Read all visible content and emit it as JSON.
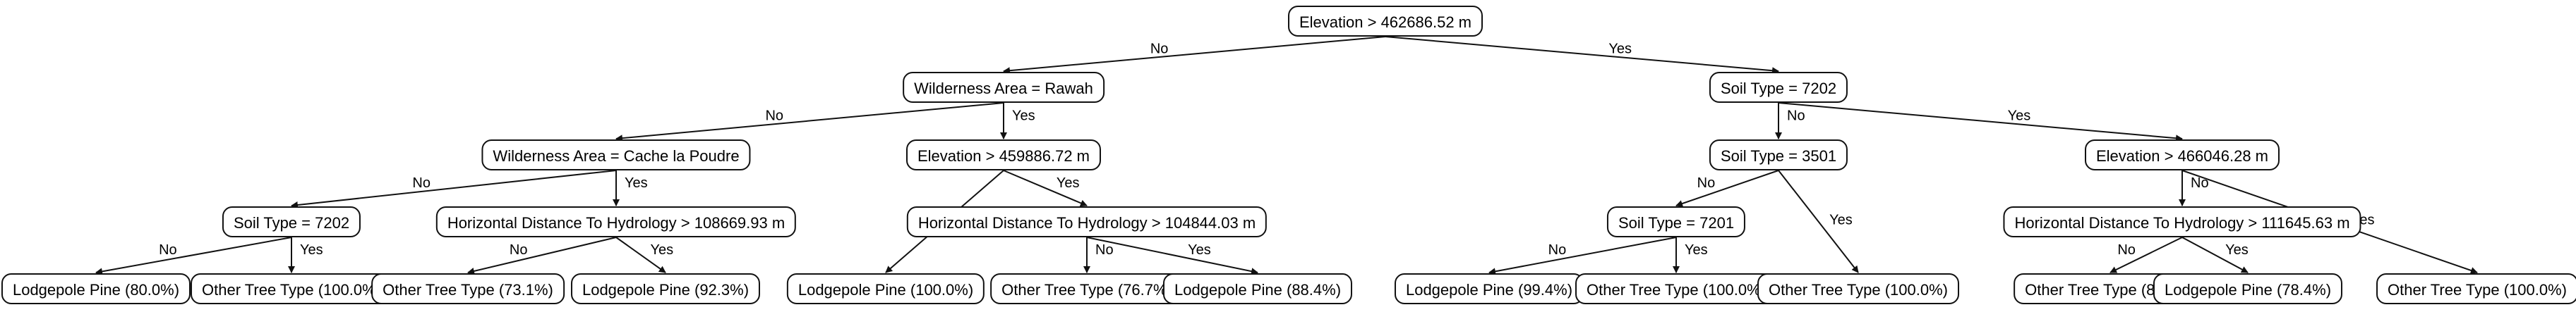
{
  "nodes": [
    {
      "id": "n0",
      "text": "Elevation > 462686.52 m"
    },
    {
      "id": "n1",
      "text": "Wilderness Area = Rawah"
    },
    {
      "id": "n2",
      "text": "Soil Type = 7202"
    },
    {
      "id": "n3",
      "text": "Wilderness Area = Cache la Poudre"
    },
    {
      "id": "n4",
      "text": "Elevation > 459886.72 m"
    },
    {
      "id": "n5",
      "text": "Soil Type = 3501"
    },
    {
      "id": "n6",
      "text": "Elevation > 466046.28 m"
    },
    {
      "id": "n7",
      "text": "Soil Type = 7202"
    },
    {
      "id": "n8",
      "text": "Horizontal Distance To Hydrology > 108669.93 m"
    },
    {
      "id": "n9",
      "text": "Horizontal Distance To Hydrology > 104844.03 m"
    },
    {
      "id": "n10",
      "text": "Soil Type = 7201"
    },
    {
      "id": "n11",
      "text": "Horizontal Distance To Hydrology > 111645.63 m"
    },
    {
      "id": "l1",
      "text": "Lodgepole Pine (80.0%)"
    },
    {
      "id": "l2",
      "text": "Other Tree Type (100.0%)"
    },
    {
      "id": "l3",
      "text": "Other Tree Type (73.1%)"
    },
    {
      "id": "l4",
      "text": "Lodgepole Pine (92.3%)"
    },
    {
      "id": "l5",
      "text": "Lodgepole Pine (100.0%)"
    },
    {
      "id": "l6",
      "text": "Other Tree Type (76.7%)"
    },
    {
      "id": "l7",
      "text": "Lodgepole Pine (88.4%)"
    },
    {
      "id": "l8",
      "text": "Lodgepole Pine (99.4%)"
    },
    {
      "id": "l9",
      "text": "Other Tree Type (100.0%)"
    },
    {
      "id": "l10",
      "text": "Other Tree Type (100.0%)"
    },
    {
      "id": "l11",
      "text": "Other Tree Type (85.8%)"
    },
    {
      "id": "l12",
      "text": "Lodgepole Pine (78.4%)"
    },
    {
      "id": "l13",
      "text": "Other Tree Type (100.0%)"
    }
  ],
  "edges": [
    {
      "from": "n0",
      "to": "n1",
      "label": "No"
    },
    {
      "from": "n0",
      "to": "n2",
      "label": "Yes"
    },
    {
      "from": "n1",
      "to": "n3",
      "label": "No"
    },
    {
      "from": "n1",
      "to": "n4",
      "label": "Yes"
    },
    {
      "from": "n2",
      "to": "n5",
      "label": "No"
    },
    {
      "from": "n2",
      "to": "n6",
      "label": "Yes"
    },
    {
      "from": "n3",
      "to": "n7",
      "label": "No"
    },
    {
      "from": "n3",
      "to": "n8",
      "label": "Yes"
    },
    {
      "from": "n4",
      "to": "l5",
      "label": "No"
    },
    {
      "from": "n4",
      "to": "n9",
      "label": "Yes"
    },
    {
      "from": "n5",
      "to": "n10",
      "label": "No"
    },
    {
      "from": "n5",
      "to": "l10",
      "label": "Yes"
    },
    {
      "from": "n6",
      "to": "n11",
      "label": "No"
    },
    {
      "from": "n6",
      "to": "l13",
      "label": "Yes"
    },
    {
      "from": "n7",
      "to": "l1",
      "label": "No"
    },
    {
      "from": "n7",
      "to": "l2",
      "label": "Yes"
    },
    {
      "from": "n8",
      "to": "l3",
      "label": "No"
    },
    {
      "from": "n8",
      "to": "l4",
      "label": "Yes"
    },
    {
      "from": "n9",
      "to": "l6",
      "label": "No"
    },
    {
      "from": "n9",
      "to": "l7",
      "label": "Yes"
    },
    {
      "from": "n10",
      "to": "l8",
      "label": "No"
    },
    {
      "from": "n10",
      "to": "l9",
      "label": "Yes"
    },
    {
      "from": "n11",
      "to": "l11",
      "label": "No"
    },
    {
      "from": "n11",
      "to": "l12",
      "label": "Yes"
    }
  ]
}
